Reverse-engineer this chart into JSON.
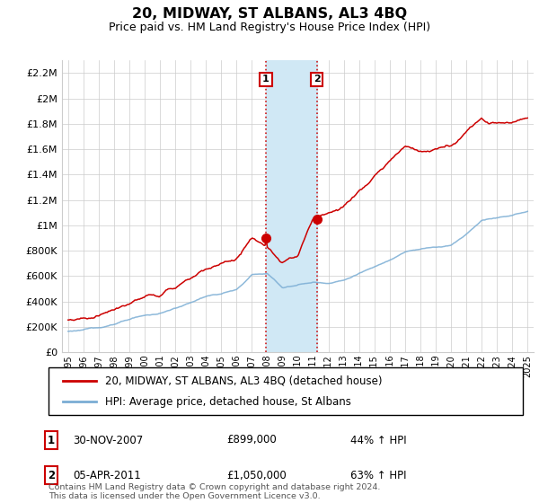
{
  "title": "20, MIDWAY, ST ALBANS, AL3 4BQ",
  "subtitle": "Price paid vs. HM Land Registry's House Price Index (HPI)",
  "ylim": [
    0,
    2300000
  ],
  "yticks": [
    0,
    200000,
    400000,
    600000,
    800000,
    1000000,
    1200000,
    1400000,
    1600000,
    1800000,
    2000000,
    2200000
  ],
  "ytick_labels": [
    "£0",
    "£200K",
    "£400K",
    "£600K",
    "£800K",
    "£1M",
    "£1.2M",
    "£1.4M",
    "£1.6M",
    "£1.8M",
    "£2M",
    "£2.2M"
  ],
  "sale1_date": 2007.92,
  "sale1_price": 899000,
  "sale1_label": "30-NOV-2007",
  "sale1_pct": "44%",
  "sale2_date": 2011.25,
  "sale2_price": 1050000,
  "sale2_label": "05-APR-2011",
  "sale2_pct": "63%",
  "red_line_color": "#cc0000",
  "blue_line_color": "#7aadd4",
  "shade_color": "#d0e8f5",
  "grid_color": "#cccccc",
  "background_color": "#ffffff",
  "legend_label_red": "20, MIDWAY, ST ALBANS, AL3 4BQ (detached house)",
  "legend_label_blue": "HPI: Average price, detached house, St Albans",
  "footer": "Contains HM Land Registry data © Crown copyright and database right 2024.\nThis data is licensed under the Open Government Licence v3.0.",
  "annotation1_box": "1",
  "annotation2_box": "2",
  "hpi_years": [
    1995,
    1996,
    1997,
    1998,
    1999,
    2000,
    2001,
    2002,
    2003,
    2004,
    2005,
    2006,
    2007,
    2008,
    2009,
    2010,
    2011,
    2012,
    2013,
    2014,
    2015,
    2016,
    2017,
    2018,
    2019,
    2020,
    2021,
    2022,
    2023,
    2024,
    2025
  ],
  "hpi_values": [
    165000,
    175000,
    195000,
    220000,
    255000,
    290000,
    305000,
    345000,
    390000,
    440000,
    460000,
    490000,
    610000,
    620000,
    510000,
    530000,
    550000,
    545000,
    565000,
    620000,
    670000,
    730000,
    790000,
    810000,
    830000,
    840000,
    930000,
    1040000,
    1060000,
    1080000,
    1110000
  ],
  "red_years": [
    1995,
    1996,
    1997,
    1998,
    1999,
    2000,
    2001,
    2002,
    2003,
    2004,
    2005,
    2006,
    2007,
    2008,
    2009,
    2010,
    2011,
    2012,
    2013,
    2014,
    2015,
    2016,
    2017,
    2018,
    2019,
    2020,
    2021,
    2022,
    2023,
    2024,
    2025
  ],
  "red_values": [
    255000,
    265000,
    290000,
    330000,
    385000,
    430000,
    455000,
    510000,
    580000,
    660000,
    690000,
    740000,
    899000,
    820000,
    700000,
    760000,
    1050000,
    1100000,
    1150000,
    1270000,
    1380000,
    1500000,
    1630000,
    1570000,
    1600000,
    1620000,
    1730000,
    1850000,
    1810000,
    1820000,
    1850000
  ]
}
